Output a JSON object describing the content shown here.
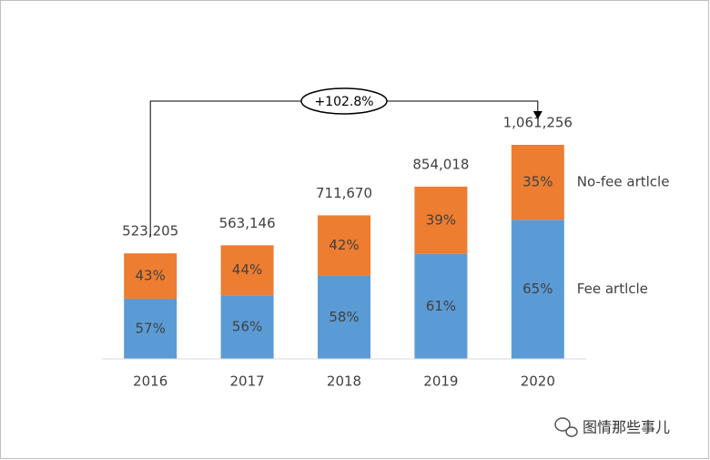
{
  "chart_data": {
    "type": "stacked_bar",
    "categories": [
      "2016",
      "2017",
      "2018",
      "2019",
      "2020"
    ],
    "totals": {
      "values": [
        523205,
        563146,
        711670,
        854018,
        1061256
      ],
      "value_labels": [
        "523,205",
        "563,146",
        "711,670",
        "854,018",
        "1,061,256"
      ]
    },
    "series": [
      {
        "name": "Fee artlcle",
        "color": "#5b9bd5",
        "values": [
          57,
          56,
          58,
          61,
          65
        ],
        "value_labels": [
          "57%",
          "56%",
          "58%",
          "61%",
          "65%"
        ]
      },
      {
        "name": "No-fee artlcle",
        "color": "#ed7d31",
        "values": [
          43,
          44,
          42,
          39,
          35
        ],
        "value_labels": [
          "43%",
          "44%",
          "42%",
          "39%",
          "35%"
        ]
      }
    ],
    "annotation": "+102.8%",
    "watermark": "图情那些事儿"
  }
}
